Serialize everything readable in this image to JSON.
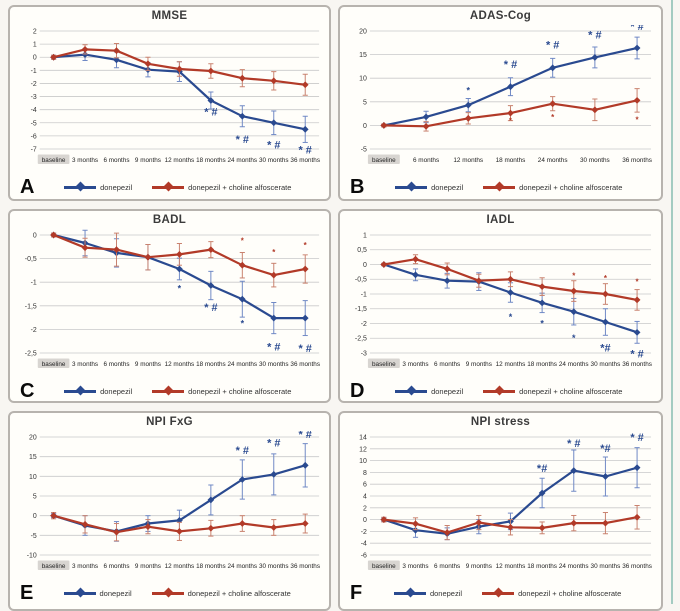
{
  "page": {
    "background": "#f8f6f2",
    "panel_background": "#fffefa",
    "panel_border_color": "#b7b3ae",
    "grid_color": "#c9c9c9",
    "edge_rule_color": "#a3cbc1",
    "baseline_highlight_color": "#d8d5d1"
  },
  "legend": {
    "series1_label": "donepezil",
    "series2_label": "donepezil + choline alfoscerate",
    "series1_color": "#2a4a90",
    "series2_color": "#b23a28"
  },
  "chart_data": [
    {
      "type": "line",
      "panel_label": "A",
      "title": "MMSE",
      "categories": [
        "baseline",
        "3 months",
        "6 months",
        "9 months",
        "12 months",
        "18 months",
        "24 months",
        "30 months",
        "36 months"
      ],
      "y_ticks": [
        "2",
        "1",
        "0",
        "-1",
        "-2",
        "-3",
        "-4",
        "-5",
        "-6",
        "-7"
      ],
      "ylim": [
        -7,
        2
      ],
      "grid": true,
      "legend_position": "bottom",
      "series": [
        {
          "name": "donepezil",
          "color": "#2a4a90",
          "err_color": "#7089c5",
          "values": [
            0,
            0.2,
            -0.2,
            -0.95,
            -1.1,
            -3.3,
            -4.5,
            -5.0,
            -5.5
          ],
          "err": [
            0.15,
            0.45,
            0.6,
            0.55,
            0.75,
            0.65,
            0.8,
            0.9,
            1.0
          ]
        },
        {
          "name": "donepezil + choline alfoscerate",
          "color": "#b23a28",
          "err_color": "#c9826f",
          "values": [
            0,
            0.6,
            0.5,
            -0.5,
            -0.9,
            -1.05,
            -1.6,
            -1.8,
            -2.1
          ],
          "err": [
            0.15,
            0.35,
            0.55,
            0.5,
            0.55,
            0.55,
            0.65,
            0.7,
            0.8
          ]
        }
      ],
      "annotations": [
        {
          "s": 0,
          "ci": 5,
          "y": -4.2,
          "text": "* #",
          "fs": 11
        },
        {
          "s": 0,
          "ci": 6,
          "y": -6.3,
          "text": "* #",
          "fs": 11
        },
        {
          "s": 0,
          "ci": 7,
          "y": -6.75,
          "text": "* #",
          "fs": 11
        },
        {
          "s": 0,
          "ci": 8,
          "y": -7.1,
          "text": "* #",
          "fs": 11
        }
      ]
    },
    {
      "type": "line",
      "panel_label": "B",
      "title": "ADAS-Cog",
      "categories": [
        "baseline",
        "6 months",
        "12 months",
        "18 months",
        "24 months",
        "30 months",
        "36 months"
      ],
      "y_ticks": [
        "20",
        "15",
        "10",
        "5",
        "0",
        "-5"
      ],
      "ylim": [
        -5,
        20
      ],
      "grid": true,
      "legend_position": "bottom",
      "series": [
        {
          "name": "donepezil",
          "color": "#2a4a90",
          "err_color": "#7089c5",
          "values": [
            0,
            1.8,
            4.3,
            8.2,
            12.2,
            14.4,
            16.4
          ],
          "err": [
            0.3,
            1.2,
            1.4,
            1.9,
            2.0,
            2.2,
            2.3
          ]
        },
        {
          "name": "donepezil + choline alfoscerate",
          "color": "#b23a28",
          "err_color": "#c9826f",
          "values": [
            0,
            -0.2,
            1.5,
            2.6,
            4.6,
            3.3,
            5.3
          ],
          "err": [
            0.3,
            1.0,
            1.2,
            1.6,
            1.5,
            2.3,
            2.5
          ]
        }
      ],
      "annotations": [
        {
          "s": 0,
          "ci": 2,
          "y": 7.4,
          "text": "*",
          "fs": 9
        },
        {
          "s": 0,
          "ci": 3,
          "y": 12.8,
          "text": "* #",
          "fs": 11
        },
        {
          "s": 0,
          "ci": 4,
          "y": 16.9,
          "text": "* #",
          "fs": 11
        },
        {
          "s": 0,
          "ci": 5,
          "y": 19.0,
          "text": "* #",
          "fs": 11
        },
        {
          "s": 0,
          "ci": 6,
          "y": 20.8,
          "text": "* #",
          "fs": 11
        },
        {
          "s": 1,
          "ci": 3,
          "y": 1.0,
          "text": "*",
          "fs": 8
        },
        {
          "s": 1,
          "ci": 4,
          "y": 1.8,
          "text": "*",
          "fs": 8
        },
        {
          "s": 1,
          "ci": 6,
          "y": 1.3,
          "text": "*",
          "fs": 8
        }
      ]
    },
    {
      "type": "line",
      "panel_label": "C",
      "title": "BADL",
      "categories": [
        "baseline",
        "3 months",
        "6 months",
        "9 months",
        "12 months",
        "18 months",
        "24 months",
        "30 months",
        "36 months"
      ],
      "y_ticks": [
        "0",
        "-0,5",
        "-1",
        "-1,5",
        "-2",
        "-2,5"
      ],
      "ylim": [
        -2.5,
        0
      ],
      "grid": true,
      "legend_position": "bottom",
      "series": [
        {
          "name": "donepezil",
          "color": "#2a4a90",
          "err_color": "#7089c5",
          "values": [
            0,
            -0.17,
            -0.38,
            -0.47,
            -0.72,
            -1.07,
            -1.36,
            -1.76,
            -1.76
          ],
          "err": [
            0.04,
            0.27,
            0.3,
            0.27,
            0.23,
            0.3,
            0.38,
            0.33,
            0.37
          ]
        },
        {
          "name": "donepezil + choline alfoscerate",
          "color": "#b23a28",
          "err_color": "#c9826f",
          "values": [
            0,
            -0.27,
            -0.31,
            -0.47,
            -0.41,
            -0.31,
            -0.64,
            -0.85,
            -0.72
          ],
          "err": [
            0.04,
            0.2,
            0.35,
            0.27,
            0.23,
            0.17,
            0.27,
            0.25,
            0.3
          ]
        }
      ],
      "annotations": [
        {
          "s": 0,
          "ci": 4,
          "y": -1.13,
          "text": "*",
          "fs": 9
        },
        {
          "s": 0,
          "ci": 5,
          "y": -1.55,
          "text": "* #",
          "fs": 11
        },
        {
          "s": 0,
          "ci": 6,
          "y": -1.88,
          "text": "*",
          "fs": 9
        },
        {
          "s": 0,
          "ci": 7,
          "y": -2.38,
          "text": "* #",
          "fs": 11
        },
        {
          "s": 0,
          "ci": 8,
          "y": -2.42,
          "text": "* #",
          "fs": 11
        },
        {
          "s": 1,
          "ci": 6,
          "y": -0.12,
          "text": "*",
          "fs": 8
        },
        {
          "s": 1,
          "ci": 7,
          "y": -0.36,
          "text": "*",
          "fs": 8
        },
        {
          "s": 1,
          "ci": 8,
          "y": -0.21,
          "text": "*",
          "fs": 8
        }
      ]
    },
    {
      "type": "line",
      "panel_label": "D",
      "title": "IADL",
      "categories": [
        "baseline",
        "3 months",
        "6 months",
        "9 months",
        "12 months",
        "18 months",
        "24 months",
        "30 months",
        "36 months"
      ],
      "y_ticks": [
        "1",
        "0,5",
        "0",
        "-0,5",
        "-1",
        "-1,5",
        "-2",
        "-2,5",
        "-3"
      ],
      "ylim": [
        -3,
        1
      ],
      "grid": true,
      "legend_position": "bottom",
      "series": [
        {
          "name": "donepezil",
          "color": "#2a4a90",
          "err_color": "#7089c5",
          "values": [
            0,
            -0.35,
            -0.55,
            -0.58,
            -0.95,
            -1.3,
            -1.6,
            -1.95,
            -2.3
          ],
          "err": [
            0.04,
            0.2,
            0.25,
            0.3,
            0.33,
            0.33,
            0.45,
            0.45,
            0.37
          ]
        },
        {
          "name": "donepezil + choline alfoscerate",
          "color": "#b23a28",
          "err_color": "#c9826f",
          "values": [
            0,
            0.18,
            -0.15,
            -0.55,
            -0.5,
            -0.75,
            -0.9,
            -1.0,
            -1.2
          ],
          "err": [
            0.04,
            0.15,
            0.2,
            0.22,
            0.25,
            0.3,
            0.35,
            0.35,
            0.35
          ]
        }
      ],
      "annotations": [
        {
          "s": 0,
          "ci": 4,
          "y": -1.78,
          "text": "*",
          "fs": 9
        },
        {
          "s": 0,
          "ci": 5,
          "y": -2.0,
          "text": "*",
          "fs": 9
        },
        {
          "s": 0,
          "ci": 6,
          "y": -2.5,
          "text": "*",
          "fs": 9
        },
        {
          "s": 0,
          "ci": 7,
          "y": -2.85,
          "text": "*#",
          "fs": 11
        },
        {
          "s": 0,
          "ci": 8,
          "y": -3.05,
          "text": "* #",
          "fs": 11
        },
        {
          "s": 1,
          "ci": 6,
          "y": -0.37,
          "text": "*",
          "fs": 8
        },
        {
          "s": 1,
          "ci": 7,
          "y": -0.45,
          "text": "*",
          "fs": 8
        },
        {
          "s": 1,
          "ci": 8,
          "y": -0.57,
          "text": "*",
          "fs": 8
        }
      ]
    },
    {
      "type": "line",
      "panel_label": "E",
      "title": "NPI FxG",
      "categories": [
        "baseline",
        "3 months",
        "6 months",
        "9 months",
        "12 months",
        "18 months",
        "24 months",
        "30 months",
        "36 months"
      ],
      "y_ticks": [
        "20",
        "15",
        "10",
        "5",
        "0",
        "-5",
        "-10"
      ],
      "ylim": [
        -10,
        20
      ],
      "grid": true,
      "legend_position": "bottom",
      "series": [
        {
          "name": "donepezil",
          "color": "#2a4a90",
          "err_color": "#7089c5",
          "values": [
            0,
            -2.5,
            -4,
            -2,
            -1.2,
            4,
            9.2,
            10.5,
            12.8
          ],
          "err": [
            0.5,
            2.5,
            2.5,
            2,
            2.6,
            3.8,
            5,
            5.2,
            5.5
          ]
        },
        {
          "name": "donepezil + choline alfoscerate",
          "color": "#b23a28",
          "err_color": "#c9826f",
          "values": [
            0,
            -2.2,
            -4.2,
            -2.8,
            -4,
            -3.2,
            -2,
            -3,
            -2
          ],
          "err": [
            0.8,
            2.2,
            2.2,
            1.8,
            2.3,
            2,
            2,
            2,
            2.4
          ]
        }
      ],
      "annotations": [
        {
          "s": 0,
          "ci": 6,
          "y": 16.5,
          "text": "* #",
          "fs": 11
        },
        {
          "s": 0,
          "ci": 7,
          "y": 18.3,
          "text": "* #",
          "fs": 11
        },
        {
          "s": 0,
          "ci": 8,
          "y": 20.5,
          "text": "* #",
          "fs": 11
        }
      ]
    },
    {
      "type": "line",
      "panel_label": "F",
      "title": "NPI stress",
      "categories": [
        "baseline",
        "3 months",
        "6 months",
        "9 months",
        "12 months",
        "18 months",
        "24 months",
        "30 months",
        "36 months"
      ],
      "y_ticks": [
        "14",
        "12",
        "10",
        "8",
        "6",
        "4",
        "2",
        "0",
        "-2",
        "-4",
        "-6"
      ],
      "ylim": [
        -6,
        14
      ],
      "grid": true,
      "legend_position": "bottom",
      "series": [
        {
          "name": "donepezil",
          "color": "#2a4a90",
          "err_color": "#7089c5",
          "values": [
            0,
            -1.8,
            -2.4,
            -1.2,
            -0.3,
            4.5,
            8.3,
            7.3,
            8.8
          ],
          "err": [
            0.3,
            1.2,
            1.0,
            1.2,
            1.4,
            2.5,
            3.5,
            3.3,
            3.4
          ]
        },
        {
          "name": "donepezil + choline alfoscerate",
          "color": "#b23a28",
          "err_color": "#c9826f",
          "values": [
            0,
            -0.7,
            -2.2,
            -0.5,
            -1.3,
            -1.4,
            -0.6,
            -0.6,
            0.4
          ],
          "err": [
            0.4,
            1.0,
            1.2,
            1.2,
            1.3,
            1.0,
            1.3,
            1.8,
            2.0
          ]
        }
      ],
      "annotations": [
        {
          "s": 0,
          "ci": 5,
          "y": 8.6,
          "text": "*#",
          "fs": 11
        },
        {
          "s": 0,
          "ci": 6,
          "y": 12.8,
          "text": "* #",
          "fs": 11
        },
        {
          "s": 0,
          "ci": 7,
          "y": 12.0,
          "text": "*#",
          "fs": 11
        },
        {
          "s": 0,
          "ci": 8,
          "y": 13.8,
          "text": "* #",
          "fs": 11
        }
      ]
    }
  ]
}
